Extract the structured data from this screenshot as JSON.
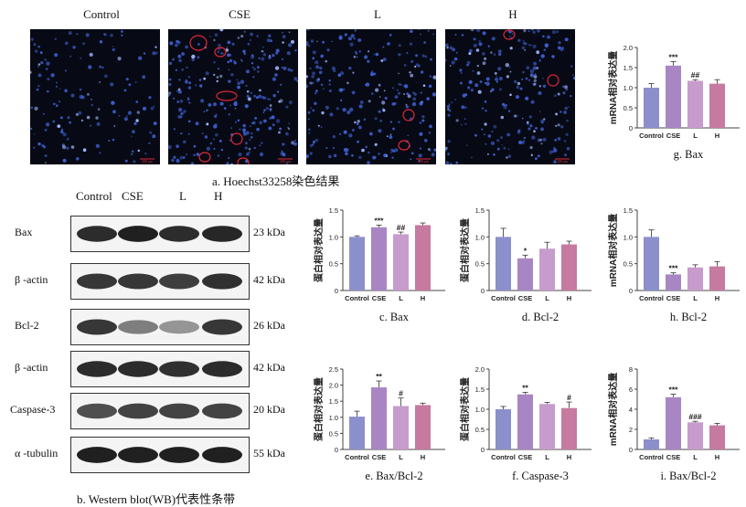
{
  "hoechst": {
    "panels": [
      "Control",
      "CSE",
      "L",
      "H"
    ],
    "scale_text": "200 μm",
    "caption": "a. Hoechst33258染色结果"
  },
  "western": {
    "header": [
      "Control",
      "CSE",
      "L",
      "H"
    ],
    "rows": [
      {
        "label": "Bax",
        "kda": "23 kDa",
        "intensities": [
          0.9,
          0.95,
          0.9,
          0.92
        ]
      },
      {
        "label": "β -actin",
        "kda": "42 kDa",
        "intensities": [
          0.85,
          0.85,
          0.82,
          0.88
        ]
      },
      {
        "label": "Bcl-2",
        "kda": "26 kDa",
        "intensities": [
          0.85,
          0.55,
          0.45,
          0.85
        ]
      },
      {
        "label": "β -actin",
        "kda": "42 kDa",
        "intensities": [
          0.9,
          0.9,
          0.88,
          0.9
        ]
      },
      {
        "label": "Caspase-3",
        "kda": "20 kDa",
        "intensities": [
          0.75,
          0.8,
          0.8,
          0.8
        ]
      },
      {
        "label": "α -tubulin",
        "kda": "55 kDa",
        "intensities": [
          0.95,
          0.95,
          0.95,
          0.95
        ]
      }
    ],
    "caption": "b. Western blot(WB)代表性条带"
  },
  "colors": {
    "Control": "#8b8fcb",
    "CSE": "#a886c4",
    "L": "#c79bcc",
    "H": "#c67aa0",
    "circle": "#e0283a"
  },
  "chart_data": [
    {
      "id": "c",
      "type": "bar",
      "caption": "c. Bax",
      "ylabel": "蛋白相对表达量",
      "categories": [
        "Control",
        "CSE",
        "L",
        "H"
      ],
      "values": [
        1.0,
        1.18,
        1.05,
        1.22
      ],
      "errors": [
        0.02,
        0.04,
        0.04,
        0.04
      ],
      "annotations": [
        "",
        "***",
        "##",
        ""
      ],
      "ylim": [
        0,
        1.5
      ],
      "yticks": [
        "0",
        "0.5",
        "1.0",
        "1.5"
      ],
      "ytick_values": [
        0,
        0.5,
        1.0,
        1.5
      ]
    },
    {
      "id": "d",
      "type": "bar",
      "caption": "d. Bcl-2",
      "ylabel": "蛋白相对表达量",
      "categories": [
        "Control",
        "CSE",
        "L",
        "H"
      ],
      "values": [
        1.0,
        0.6,
        0.78,
        0.86
      ],
      "errors": [
        0.16,
        0.06,
        0.12,
        0.06
      ],
      "annotations": [
        "",
        "*",
        "",
        ""
      ],
      "ylim": [
        0,
        1.5
      ],
      "yticks": [
        "0",
        "0.5",
        "1.0",
        "1.5"
      ],
      "ytick_values": [
        0,
        0.5,
        1.0,
        1.5
      ]
    },
    {
      "id": "e",
      "type": "bar",
      "caption": "e. Bax/Bcl-2",
      "ylabel": "蛋白相对表达量",
      "categories": [
        "Control",
        "CSE",
        "L",
        "H"
      ],
      "values": [
        1.02,
        1.93,
        1.35,
        1.38
      ],
      "errors": [
        0.17,
        0.2,
        0.25,
        0.06
      ],
      "annotations": [
        "",
        "**",
        "#",
        ""
      ],
      "ylim": [
        0,
        2.5
      ],
      "yticks": [
        "0",
        "0.5",
        "1.0",
        "1.5",
        "2.0",
        "2.5"
      ],
      "ytick_values": [
        0,
        0.5,
        1.0,
        1.5,
        2.0,
        2.5
      ]
    },
    {
      "id": "f",
      "type": "bar",
      "caption": "f. Caspase-3",
      "ylabel": "蛋白相对表达量",
      "categories": [
        "Control",
        "CSE",
        "L",
        "H"
      ],
      "values": [
        1.0,
        1.37,
        1.13,
        1.03
      ],
      "errors": [
        0.07,
        0.05,
        0.04,
        0.15
      ],
      "annotations": [
        "",
        "**",
        "",
        "#"
      ],
      "ylim": [
        0,
        2.0
      ],
      "yticks": [
        "0",
        "0.5",
        "1.0",
        "1.5",
        "2.0"
      ],
      "ytick_values": [
        0,
        0.5,
        1.0,
        1.5,
        2.0
      ]
    },
    {
      "id": "g",
      "type": "bar",
      "caption": "g. Bax",
      "ylabel": "mRNA相对表达量",
      "categories": [
        "Control",
        "CSE",
        "L",
        "H"
      ],
      "values": [
        1.0,
        1.55,
        1.17,
        1.1
      ],
      "errors": [
        0.1,
        0.1,
        0.03,
        0.1
      ],
      "annotations": [
        "",
        "***",
        "##",
        ""
      ],
      "ylim": [
        0,
        2.0
      ],
      "yticks": [
        "0",
        "0.5",
        "1.0",
        "1.5",
        "2.0"
      ],
      "ytick_values": [
        0,
        0.5,
        1.0,
        1.5,
        2.0
      ]
    },
    {
      "id": "h",
      "type": "bar",
      "caption": "h. Bcl-2",
      "ylabel": "mRNA相对表达量",
      "categories": [
        "Control",
        "CSE",
        "L",
        "H"
      ],
      "values": [
        1.0,
        0.3,
        0.43,
        0.45
      ],
      "errors": [
        0.13,
        0.03,
        0.05,
        0.09
      ],
      "annotations": [
        "",
        "***",
        "",
        ""
      ],
      "ylim": [
        0,
        1.5
      ],
      "yticks": [
        "0",
        "0.5",
        "1.0",
        "1.5"
      ],
      "ytick_values": [
        0,
        0.5,
        1.0,
        1.5
      ]
    },
    {
      "id": "i",
      "type": "bar",
      "caption": "i. Bax/Bcl-2",
      "ylabel": "mRNA相对表达量",
      "categories": [
        "Control",
        "CSE",
        "L",
        "H"
      ],
      "values": [
        1.0,
        5.2,
        2.7,
        2.4
      ],
      "errors": [
        0.15,
        0.3,
        0.1,
        0.2
      ],
      "annotations": [
        "",
        "***",
        "###",
        ""
      ],
      "ylim": [
        0,
        8
      ],
      "yticks": [
        "0",
        "2",
        "4",
        "6",
        "8"
      ],
      "ytick_values": [
        0,
        2,
        4,
        6,
        8
      ]
    }
  ]
}
